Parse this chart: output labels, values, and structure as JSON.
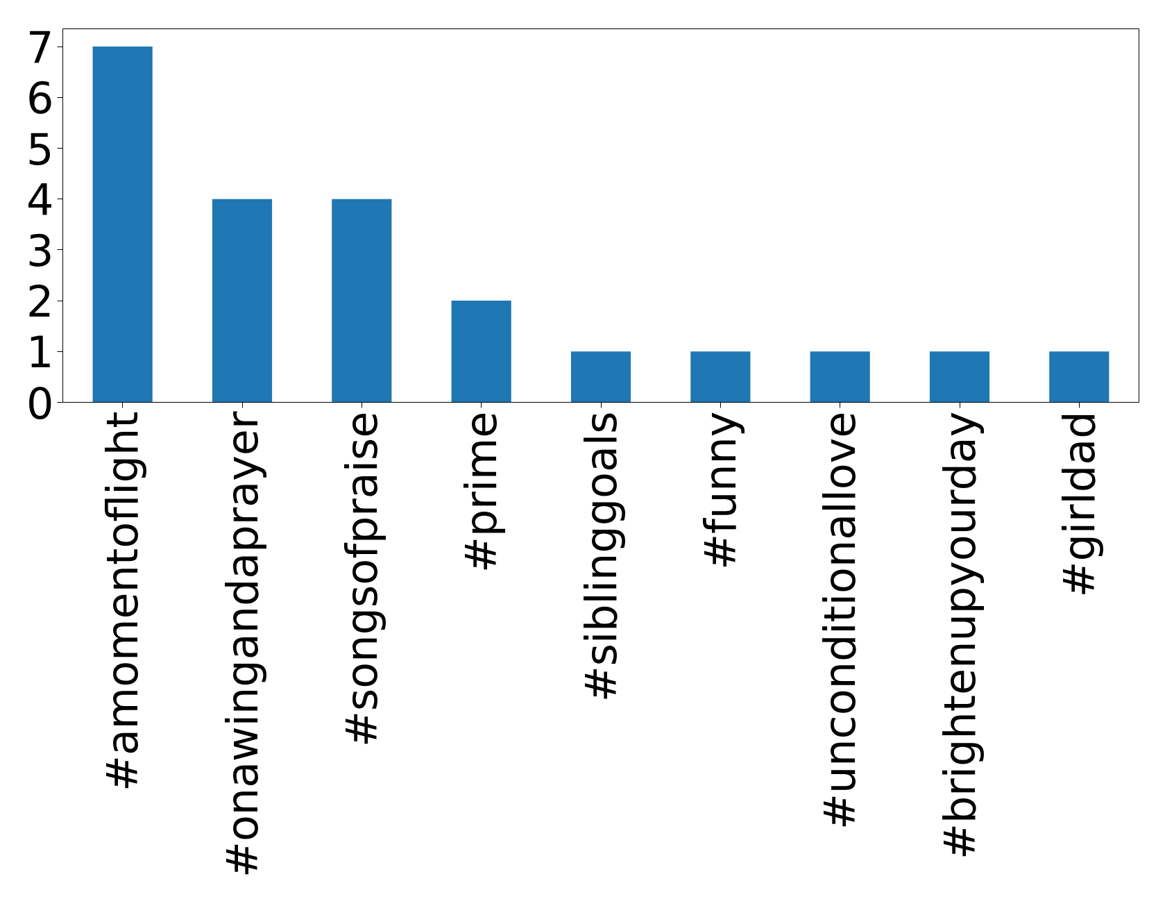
{
  "chart_data": {
    "type": "bar",
    "categories": [
      "#amomentoflight",
      "#onawingandaprayer",
      "#songsofpraise",
      "#prime",
      "#siblinggoals",
      "#funny",
      "#unconditionallove",
      "#brightenupyourday",
      "#girldad"
    ],
    "values": [
      7,
      4,
      4,
      2,
      1,
      1,
      1,
      1,
      1
    ],
    "color": "#1f77b4",
    "ylim": [
      0,
      7.35
    ],
    "yticks": [
      0,
      1,
      2,
      3,
      4,
      5,
      6,
      7
    ],
    "grid": false
  }
}
